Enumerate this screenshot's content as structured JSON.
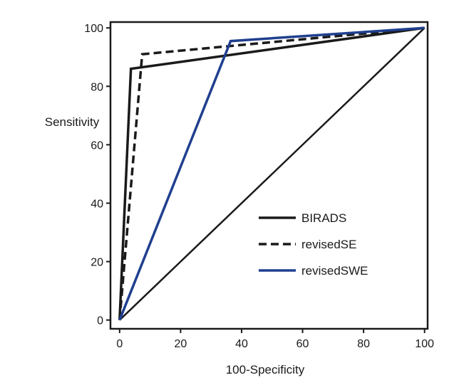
{
  "chart_data": {
    "type": "line",
    "xlabel": "100-Specificity",
    "ylabel": "Sensitivity",
    "xlim": [
      -3,
      101
    ],
    "ylim": [
      -3,
      102
    ],
    "xticks": [
      0,
      20,
      40,
      60,
      80,
      100
    ],
    "yticks": [
      0,
      20,
      40,
      60,
      80,
      100
    ],
    "x_tick_labels": [
      "0",
      "20",
      "40",
      "60",
      "80",
      "100"
    ],
    "y_tick_labels": [
      "0",
      "20",
      "40",
      "60",
      "80",
      "100"
    ],
    "grid": false,
    "legend_position": "bottom-right",
    "reference_line": {
      "x": [
        0,
        100
      ],
      "y": [
        0,
        100
      ],
      "color": "#1a1a1a"
    },
    "series": [
      {
        "name": "BIRADS",
        "x": [
          0,
          3.7,
          100
        ],
        "y": [
          0,
          86,
          100
        ],
        "color": "#1a1a1a",
        "dash": "solid"
      },
      {
        "name": "revisedSE",
        "x": [
          0,
          7.4,
          100
        ],
        "y": [
          0,
          91,
          100
        ],
        "color": "#1a1a1a",
        "dash": "dashed"
      },
      {
        "name": "revisedSWE",
        "x": [
          0,
          36.4,
          100
        ],
        "y": [
          0,
          95.5,
          100
        ],
        "color": "#1f3f8f",
        "dash": "solid"
      }
    ]
  }
}
